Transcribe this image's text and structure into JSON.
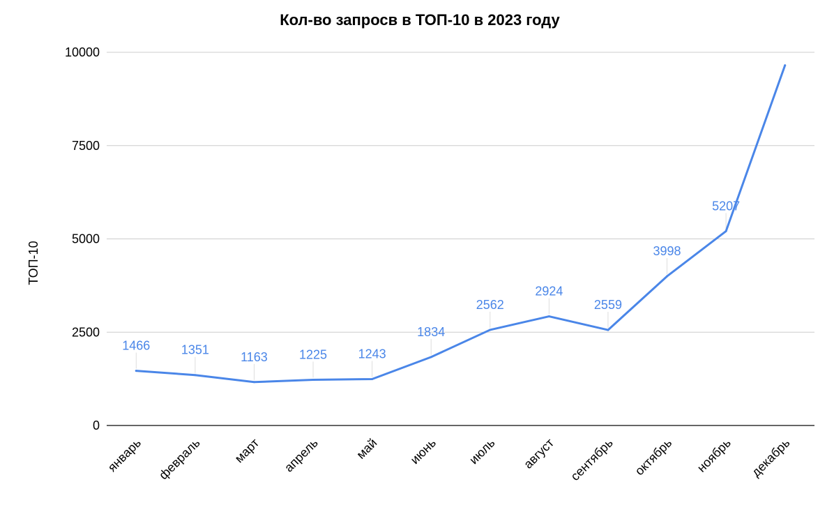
{
  "chart_data": {
    "type": "line",
    "title": "Кол-во запросв в ТОП-10 в 2023 году",
    "ylabel": "ТОП-10",
    "xlabel": "",
    "categories": [
      "январь",
      "февраль",
      "март",
      "апрель",
      "май",
      "июнь",
      "июль",
      "август",
      "сентябрь",
      "октябрь",
      "ноябрь",
      "декабрь"
    ],
    "series": [
      {
        "values": [
          1466,
          1351,
          1163,
          1225,
          1243,
          1834,
          2562,
          2924,
          2559,
          3998,
          5207,
          9650
        ],
        "labels": [
          "1466",
          "1351",
          "1163",
          "1225",
          "1243",
          "1834",
          "2562",
          "2924",
          "2559",
          "3998",
          "5207",
          ""
        ]
      }
    ],
    "ylim": [
      0,
      10000
    ],
    "yticks": [
      0,
      2500,
      5000,
      7500,
      10000
    ],
    "ytick_labels": [
      "0",
      "2500",
      "5000",
      "7500",
      "10000"
    ],
    "grid": true,
    "legend": "none",
    "colors": {
      "line": "#4a86e8",
      "label": "#4a86e8",
      "grid": "#cccccc",
      "axis": "#333333",
      "leader": "#dddddd"
    }
  }
}
